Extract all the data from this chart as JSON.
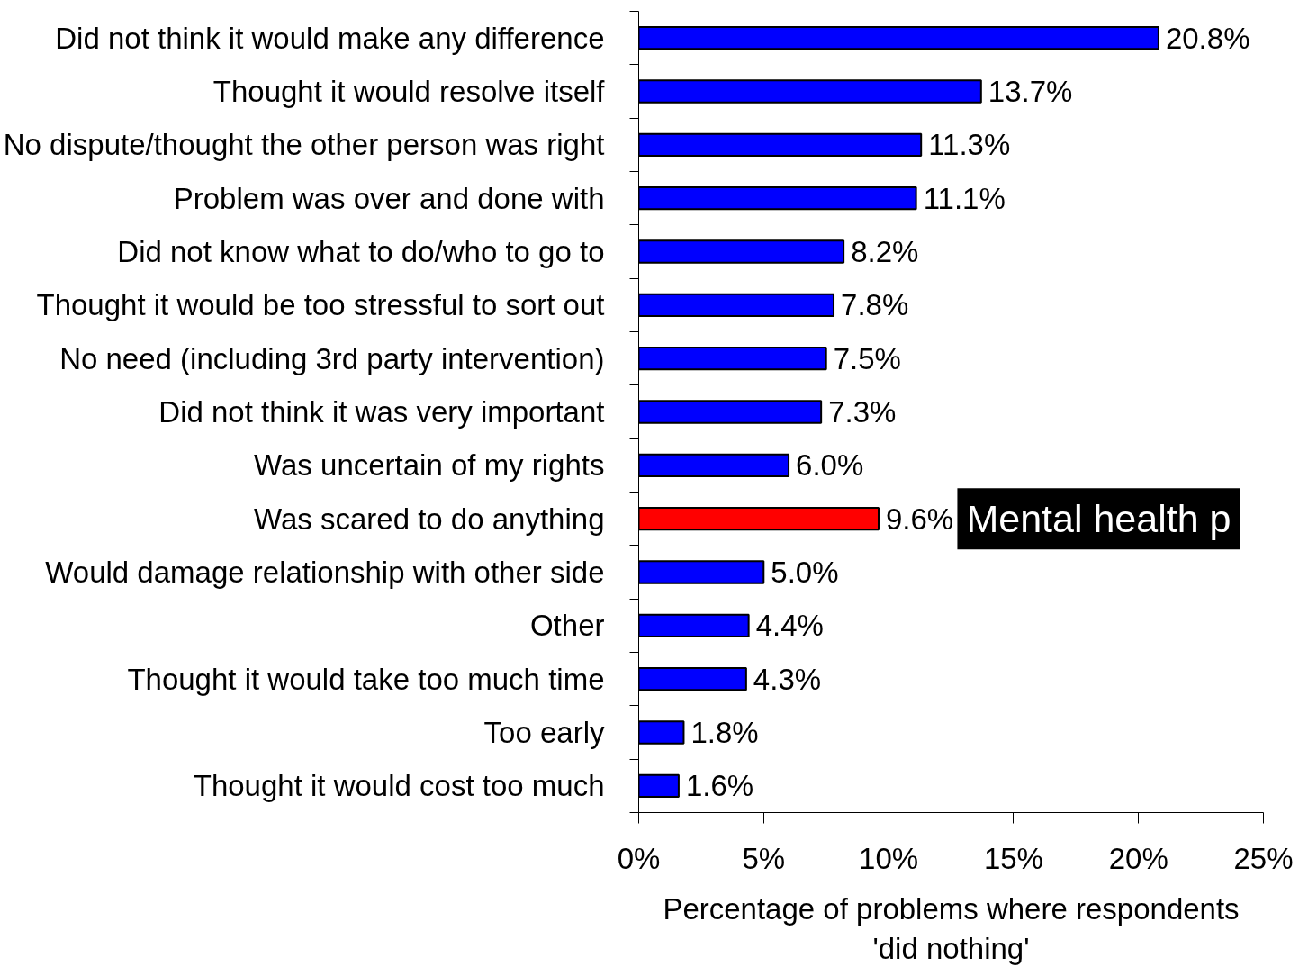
{
  "chart_data": {
    "type": "bar",
    "orientation": "horizontal",
    "xlabel": "Percentage of problems where respondents 'did nothing'",
    "categories": [
      "Did not think it would make any difference",
      "Thought it would resolve itself",
      "No dispute/thought the other person was right",
      "Problem was over and done with",
      "Did not know what to do/who to go to",
      "Thought it would be too stressful to sort out",
      "No need (including 3rd party intervention)",
      "Did not think it was very important",
      "Was uncertain of my rights",
      "Was scared to do anything",
      "Would damage relationship with other side",
      "Other",
      "Thought it would take too much time",
      "Too early",
      "Thought it would cost too much"
    ],
    "values": [
      20.8,
      13.7,
      11.3,
      11.1,
      8.2,
      7.8,
      7.5,
      7.3,
      6.0,
      9.6,
      5.0,
      4.4,
      4.3,
      1.8,
      1.6
    ],
    "value_labels": [
      "20.8%",
      "13.7%",
      "11.3%",
      "11.1%",
      "8.2%",
      "7.8%",
      "7.5%",
      "7.3%",
      "6.0%",
      "9.6%",
      "5.0%",
      "4.4%",
      "4.3%",
      "1.8%",
      "1.6%"
    ],
    "colors": [
      "#0000ff",
      "#0000ff",
      "#0000ff",
      "#0000ff",
      "#0000ff",
      "#0000ff",
      "#0000ff",
      "#0000ff",
      "#0000ff",
      "#ff0000",
      "#0000ff",
      "#0000ff",
      "#0000ff",
      "#0000ff",
      "#0000ff"
    ],
    "xlim": [
      0,
      25
    ],
    "xticks": [
      {
        "value": 0,
        "label": "0%"
      },
      {
        "value": 5,
        "label": "5%"
      },
      {
        "value": 10,
        "label": "10%"
      },
      {
        "value": 15,
        "label": "15%"
      },
      {
        "value": 20,
        "label": "20%"
      },
      {
        "value": 25,
        "label": "25%"
      }
    ],
    "grid": false,
    "annotations": [
      "Mental health p"
    ]
  }
}
